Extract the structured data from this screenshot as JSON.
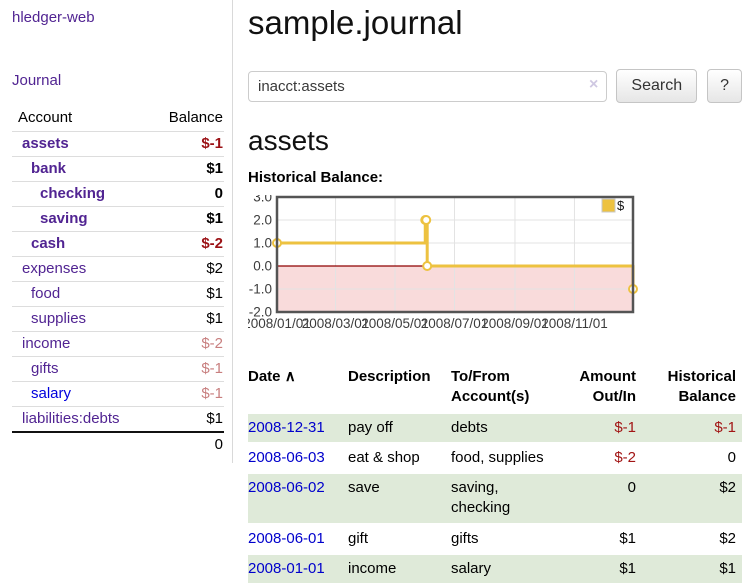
{
  "app": {
    "title": "hledger-web",
    "nav_journal": "Journal"
  },
  "sidebar": {
    "headers": {
      "account": "Account",
      "balance": "Balance"
    },
    "accounts": [
      {
        "name": "assets",
        "indent": 1,
        "bold": true,
        "link": "purple",
        "balance": "$-1",
        "style": "neg-bold"
      },
      {
        "name": "bank",
        "indent": 2,
        "bold": true,
        "link": "purple",
        "balance": "$1",
        "style": "pos-bold"
      },
      {
        "name": "checking",
        "indent": 3,
        "bold": true,
        "link": "purple",
        "balance": "0",
        "style": "pos-bold"
      },
      {
        "name": "saving",
        "indent": 3,
        "bold": true,
        "link": "purple",
        "balance": "$1",
        "style": "pos-bold"
      },
      {
        "name": "cash",
        "indent": 2,
        "bold": true,
        "link": "purple",
        "balance": "$-2",
        "style": "neg-bold"
      },
      {
        "name": "expenses",
        "indent": 1,
        "bold": false,
        "link": "purple",
        "balance": "$2",
        "style": "pos"
      },
      {
        "name": "food",
        "indent": 2,
        "bold": false,
        "link": "purple",
        "balance": "$1",
        "style": "pos"
      },
      {
        "name": "supplies",
        "indent": 2,
        "bold": false,
        "link": "purple",
        "balance": "$1",
        "style": "pos"
      },
      {
        "name": "income",
        "indent": 1,
        "bold": false,
        "link": "purple",
        "balance": "$-2",
        "style": "neg-light"
      },
      {
        "name": "gifts",
        "indent": 2,
        "bold": false,
        "link": "purple",
        "balance": "$-1",
        "style": "neg-light"
      },
      {
        "name": "salary",
        "indent": 2,
        "bold": false,
        "link": "blue",
        "balance": "$-1",
        "style": "neg-light"
      },
      {
        "name": "liabilities:debts",
        "indent": 1,
        "bold": false,
        "link": "purple",
        "balance": "$1",
        "style": "pos"
      }
    ],
    "total": "0"
  },
  "main": {
    "title": "sample.journal",
    "search": {
      "value": "inacct:assets",
      "clear_icon": "×",
      "button": "Search",
      "help_button": "?"
    },
    "account_heading": "assets",
    "chart_label": "Historical Balance:"
  },
  "chart_data": {
    "type": "line",
    "title": "Historical Balance",
    "step": true,
    "legend": "$",
    "legend_position": "top-right",
    "series_color": "#edc240",
    "negative_fill": "#f9dbdb",
    "zero_line_color": "#8f0000",
    "grid_color": "#e3e3e3",
    "border_color": "#545454",
    "ylim": [
      -2,
      3
    ],
    "y_ticks": [
      3.0,
      2.0,
      1.0,
      0.0,
      -1.0,
      -2.0
    ],
    "x_ticks": [
      {
        "label": "2008/01/01",
        "day": 0
      },
      {
        "label": "2008/03/01",
        "day": 60
      },
      {
        "label": "2008/05/01",
        "day": 121
      },
      {
        "label": "2008/07/01",
        "day": 182
      },
      {
        "label": "2008/09/01",
        "day": 244
      },
      {
        "label": "2008/11/01",
        "day": 305
      }
    ],
    "xlim_days": [
      0,
      365
    ],
    "points": [
      {
        "date": "2008-01-01",
        "day": 0,
        "value": 1
      },
      {
        "date": "2008-06-01",
        "day": 152,
        "value": 2
      },
      {
        "date": "2008-06-02",
        "day": 153,
        "value": 2
      },
      {
        "date": "2008-06-03",
        "day": 154,
        "value": 0
      },
      {
        "date": "2008-12-31",
        "day": 365,
        "value": -1
      }
    ]
  },
  "register": {
    "headers": {
      "date": "Date",
      "sort_icon": "∧",
      "description": "Description",
      "accounts": "To/From Account(s)",
      "amount": "Amount Out/In",
      "balance": "Historical Balance"
    },
    "rows": [
      {
        "date": "2008-12-31",
        "description": "pay off",
        "accounts": "debts",
        "amount": "$-1",
        "amount_neg": true,
        "balance": "$-1",
        "balance_neg": true,
        "shaded": true
      },
      {
        "date": "2008-06-03",
        "description": "eat & shop",
        "accounts": "food, supplies",
        "amount": "$-2",
        "amount_neg": true,
        "balance": "0",
        "balance_neg": false,
        "shaded": false
      },
      {
        "date": "2008-06-02",
        "description": "save",
        "accounts": "saving, checking",
        "amount": "0",
        "amount_neg": false,
        "balance": "$2",
        "balance_neg": false,
        "shaded": true
      },
      {
        "date": "2008-06-01",
        "description": "gift",
        "accounts": "gifts",
        "amount": "$1",
        "amount_neg": false,
        "balance": "$2",
        "balance_neg": false,
        "shaded": false
      },
      {
        "date": "2008-01-01",
        "description": "income",
        "accounts": "salary",
        "amount": "$1",
        "amount_neg": false,
        "balance": "$1",
        "balance_neg": false,
        "shaded": true
      }
    ]
  }
}
